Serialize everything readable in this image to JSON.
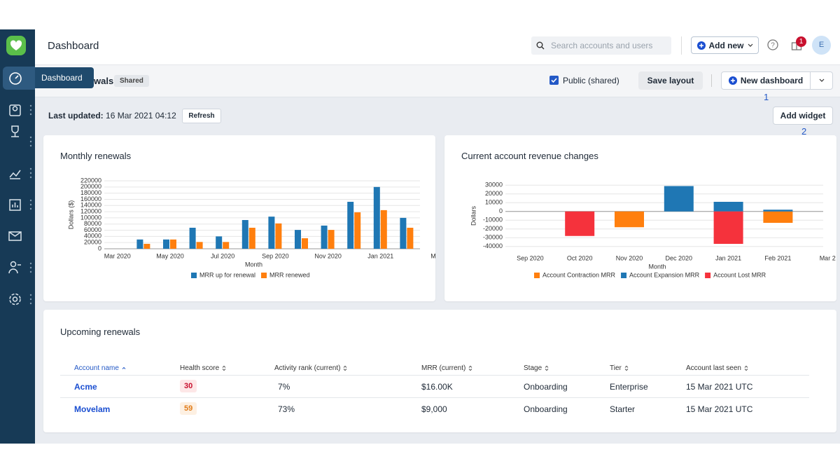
{
  "header": {
    "title": "Dashboard",
    "search_placeholder": "Search accounts and users",
    "add_new": "Add new",
    "notification_count": 1,
    "avatar": "E"
  },
  "sidebar": {
    "tooltip": "Dashboard"
  },
  "toolbar": {
    "dashboard_name": "wals",
    "shared_tag": "Shared",
    "public_checkbox": "Public (shared)",
    "save_layout": "Save layout",
    "new_dashboard": "New dashboard",
    "annotation": 1
  },
  "subbar": {
    "last_updated_label": "Last updated:",
    "last_updated_value": "16 Mar 2021 04:12",
    "refresh": "Refresh",
    "add_widget": "Add widget",
    "annotation": 2
  },
  "chart_data": [
    {
      "type": "bar",
      "title": "Monthly renewals",
      "x_label": "Month",
      "y_label": "Dollars ($)",
      "categories": [
        "Mar 2020",
        null,
        "May 2020",
        null,
        "Jul 2020",
        null,
        "Sep 2020",
        null,
        "Nov 2020",
        null,
        "Jan 2021",
        null,
        "M"
      ],
      "series": [
        {
          "name": "MRR up for renewal",
          "color": "#1f77b4",
          "values": [
            null,
            30000,
            30000,
            68000,
            40000,
            93000,
            104000,
            61000,
            75000,
            152000,
            200000,
            100000,
            null
          ]
        },
        {
          "name": "MRR renewed",
          "color": "#ff7f0e",
          "values": [
            null,
            16000,
            30000,
            22000,
            22000,
            68000,
            82000,
            34000,
            61000,
            118000,
            125000,
            68000,
            null
          ]
        }
      ],
      "ylim": [
        0,
        220000
      ],
      "yticks": [
        0,
        20000,
        40000,
        60000,
        80000,
        100000,
        120000,
        140000,
        160000,
        180000,
        200000,
        220000
      ],
      "grid": true,
      "stacked": false
    },
    {
      "type": "bar",
      "title": "Current account revenue changes",
      "x_label": "Month",
      "y_label": "Dollars",
      "categories": [
        "Sep 2020",
        "Oct 2020",
        "Nov 2020",
        "Dec 2020",
        "Jan 2021",
        "Feb 2021",
        "Mar 2"
      ],
      "series": [
        {
          "name": "Account Contraction MRR",
          "color": "#ff7f0e",
          "values": [
            null,
            null,
            -18000,
            null,
            null,
            -13000,
            null
          ]
        },
        {
          "name": "Account Expansion MRR",
          "color": "#1f77b4",
          "values": [
            null,
            null,
            null,
            29000,
            11000,
            2000,
            null
          ]
        },
        {
          "name": "Account Lost MRR",
          "color": "#f5323c",
          "values": [
            null,
            -28000,
            null,
            null,
            -37000,
            null,
            null
          ]
        }
      ],
      "ylim": [
        -45000,
        35000
      ],
      "yticks": [
        30000,
        20000,
        10000,
        0,
        -10000,
        -20000,
        -30000,
        -40000
      ],
      "grid": true,
      "stacked": true
    }
  ],
  "table": {
    "title": "Upcoming renewals",
    "columns": [
      "Account name",
      "Health score",
      "Activity rank (current)",
      "MRR (current)",
      "Stage",
      "Tier",
      "Account last seen"
    ],
    "rows": [
      [
        "Acme",
        30,
        "7%",
        "$16.00K",
        "Onboarding",
        "Enterprise",
        "15 Mar 2021 UTC"
      ],
      [
        "Movelam",
        59,
        "73%",
        "$9,000",
        "Onboarding",
        "Starter",
        "15 Mar 2021 UTC"
      ]
    ]
  }
}
